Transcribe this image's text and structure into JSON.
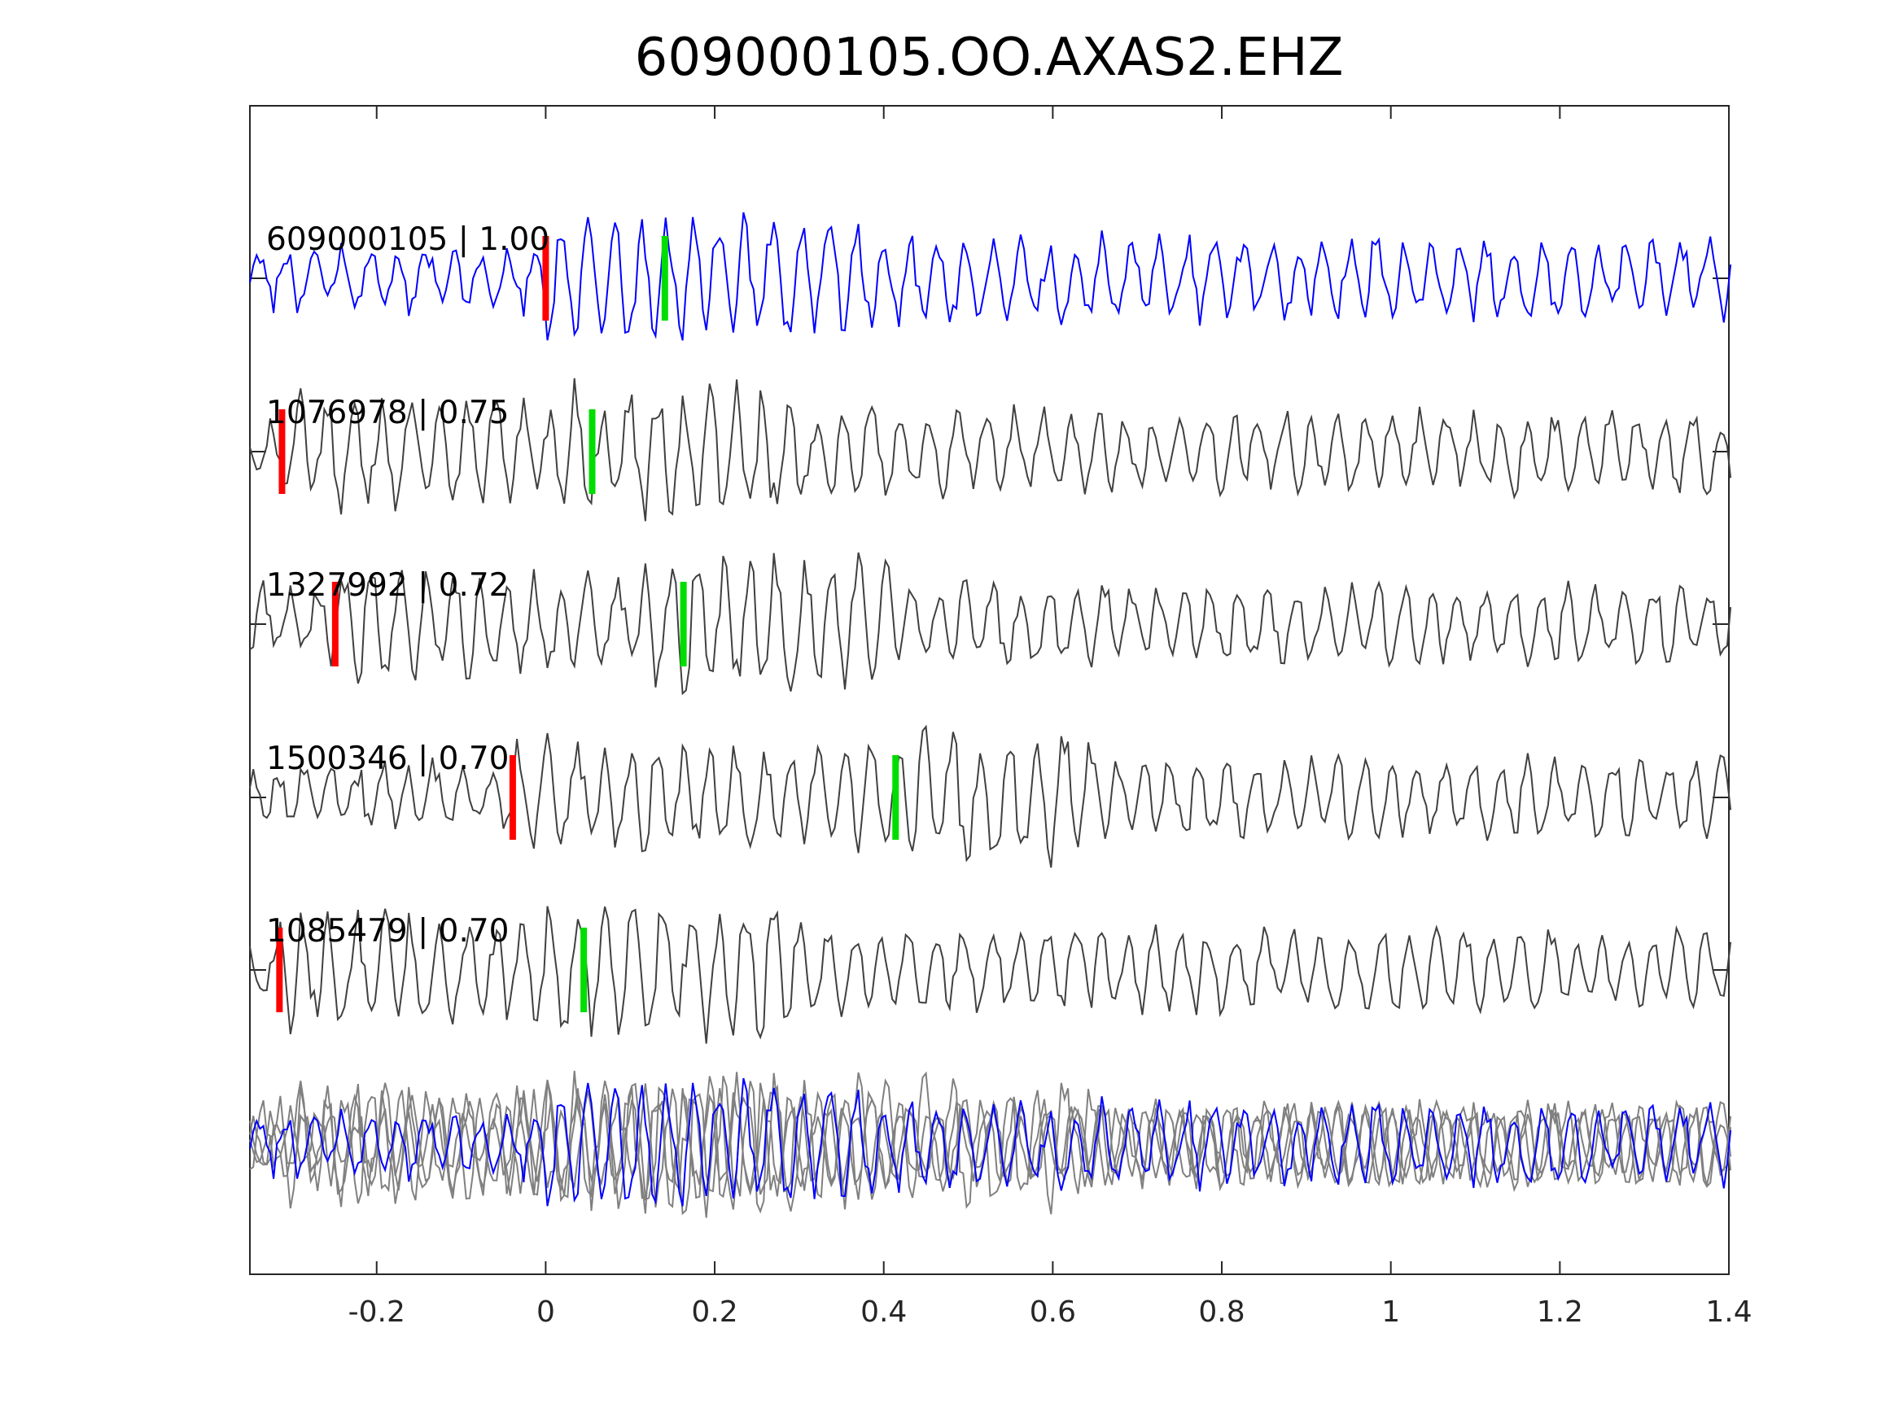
{
  "chart_data": {
    "type": "line",
    "title": "609000105.OO.AXAS2.EHZ",
    "xlabel": "",
    "ylabel": "",
    "xlim": [
      -0.35,
      1.4
    ],
    "xticks": [
      -0.2,
      0,
      0.2,
      0.4,
      0.6,
      0.8,
      1,
      1.2,
      1.4
    ],
    "xtick_labels": [
      "-0.2",
      "0",
      "0.2",
      "0.4",
      "0.6",
      "0.8",
      "1",
      "1.2",
      "1.4"
    ],
    "grid": false,
    "colors": {
      "template": "#0000ff",
      "neighbor": "#404040",
      "stack_neighbor": "#808080",
      "p_pick": "#ff0000",
      "s_pick": "#00dd00",
      "axis": "#262626"
    },
    "traces": [
      {
        "label": "609000105 | 1.00",
        "id": "609000105",
        "cc": 1.0,
        "p_pick": 0.0,
        "s_pick": 0.141,
        "template": true,
        "seed": 11
      },
      {
        "label": "1076978 | 0.75",
        "id": "1076978",
        "cc": 0.75,
        "p_pick": -0.312,
        "s_pick": 0.055,
        "template": false,
        "seed": 23
      },
      {
        "label": "1327992 | 0.72",
        "id": "1327992",
        "cc": 0.72,
        "p_pick": -0.249,
        "s_pick": 0.163,
        "template": false,
        "seed": 37
      },
      {
        "label": "1500346 | 0.70",
        "id": "1500346",
        "cc": 0.7,
        "p_pick": -0.039,
        "s_pick": 0.414,
        "template": false,
        "seed": 51
      },
      {
        "label": "1085479 | 0.70",
        "id": "1085479",
        "cc": 0.7,
        "p_pick": -0.315,
        "s_pick": 0.045,
        "template": false,
        "seed": 67
      }
    ],
    "stack": {
      "description_visible": false
    }
  }
}
